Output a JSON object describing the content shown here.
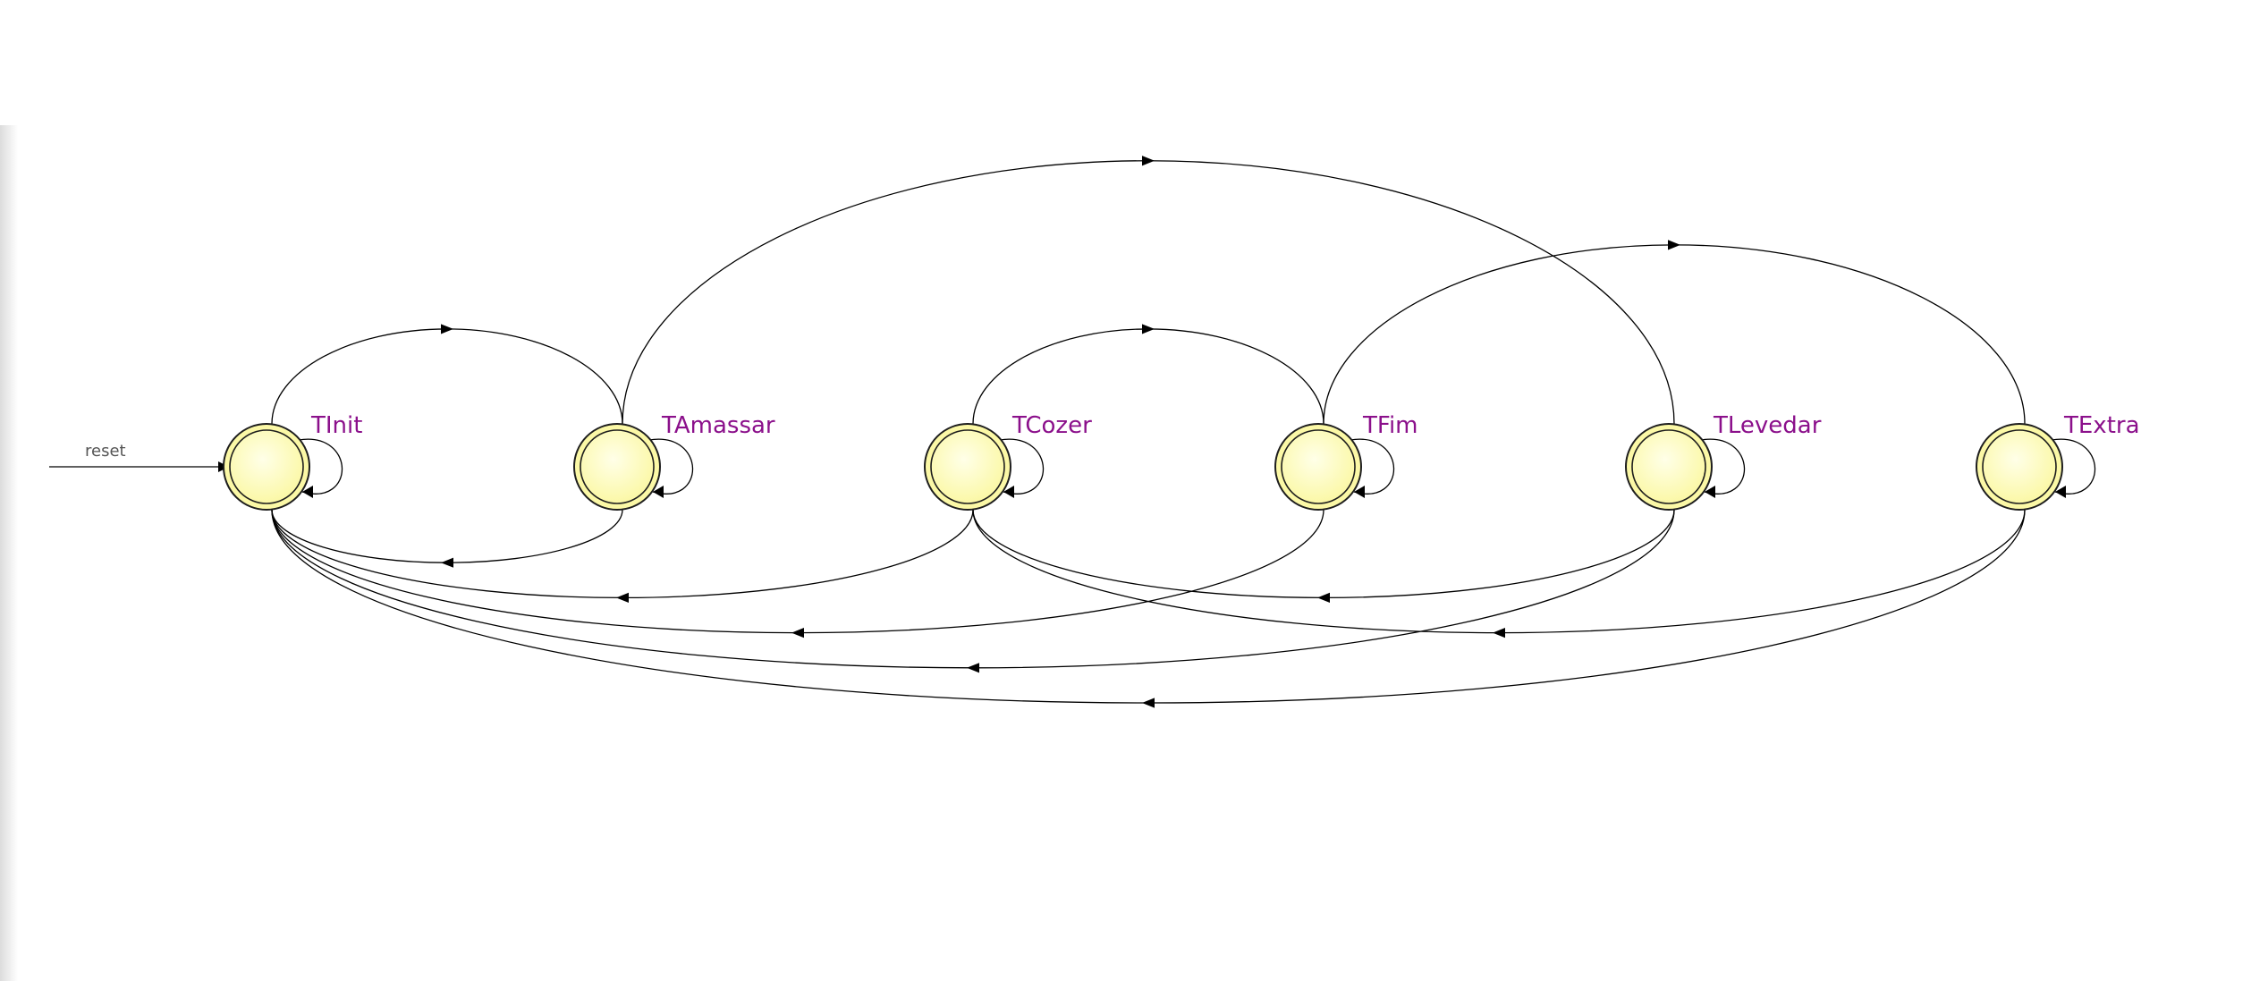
{
  "diagram": {
    "type": "finite-state-machine",
    "reset_label": "reset",
    "colors": {
      "state_fill": "#fbf8a6",
      "state_highlight": "#ffffe8",
      "state_border": "#1e1e1e",
      "label": "#8b108b",
      "edge": "#000000"
    },
    "states": [
      {
        "id": "TInit",
        "label": "TInit",
        "initial": true
      },
      {
        "id": "TAmassar",
        "label": "TAmassar"
      },
      {
        "id": "TCozer",
        "label": "TCozer"
      },
      {
        "id": "TFim",
        "label": "TFim"
      },
      {
        "id": "TLevedar",
        "label": "TLevedar"
      },
      {
        "id": "TExtra",
        "label": "TExtra"
      }
    ],
    "transitions": [
      {
        "from": "TInit",
        "to": "TInit"
      },
      {
        "from": "TAmassar",
        "to": "TAmassar"
      },
      {
        "from": "TCozer",
        "to": "TCozer"
      },
      {
        "from": "TFim",
        "to": "TFim"
      },
      {
        "from": "TLevedar",
        "to": "TLevedar"
      },
      {
        "from": "TExtra",
        "to": "TExtra"
      },
      {
        "from": "TInit",
        "to": "TAmassar"
      },
      {
        "from": "TAmassar",
        "to": "TInit"
      },
      {
        "from": "TAmassar",
        "to": "TLevedar"
      },
      {
        "from": "TCozer",
        "to": "TFim"
      },
      {
        "from": "TFim",
        "to": "TExtra"
      },
      {
        "from": "TCozer",
        "to": "TInit"
      },
      {
        "from": "TFim",
        "to": "TInit"
      },
      {
        "from": "TLevedar",
        "to": "TInit"
      },
      {
        "from": "TExtra",
        "to": "TInit"
      },
      {
        "from": "TLevedar",
        "to": "TCozer"
      },
      {
        "from": "TExtra",
        "to": "TCozer"
      }
    ]
  }
}
